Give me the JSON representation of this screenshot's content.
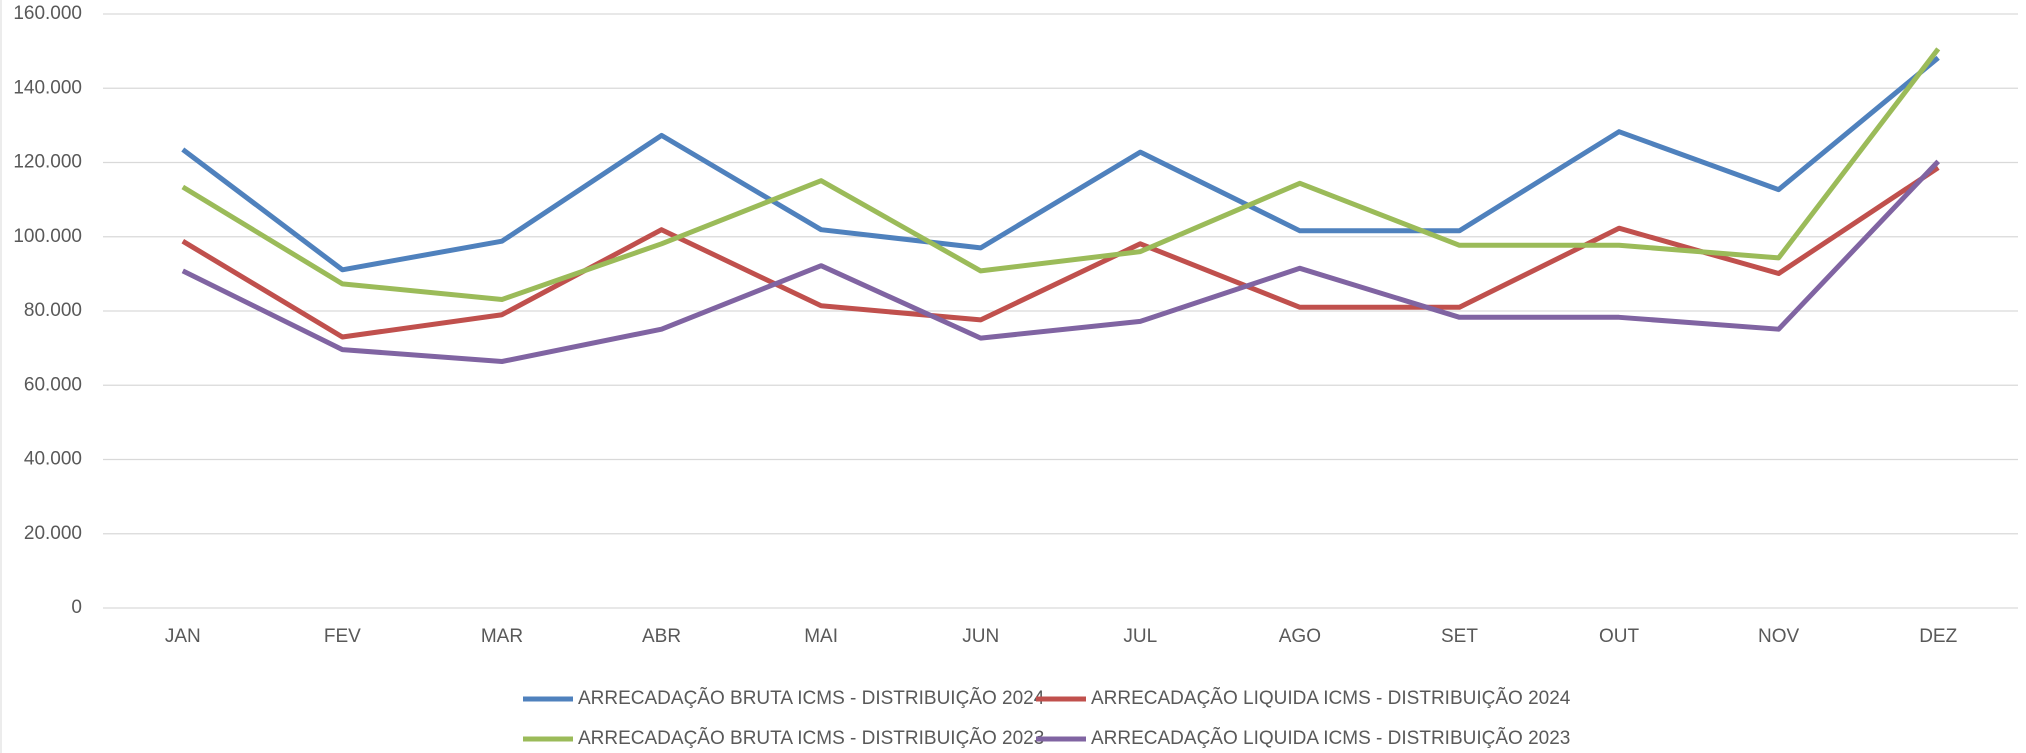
{
  "chart_data": {
    "type": "line",
    "categories": [
      "JAN",
      "FEV",
      "MAR",
      "ABR",
      "MAI",
      "JUN",
      "JUL",
      "AGO",
      "SET",
      "OUT",
      "NOV",
      "DEZ"
    ],
    "series": [
      {
        "name": "ARRECADAÇÃO BRUTA ICMS - DISTRIBUIÇÃO 2024",
        "color": "#4f81bd",
        "values": [
          123500,
          91100,
          98800,
          127300,
          101900,
          97000,
          122800,
          101600,
          101600,
          128300,
          112700,
          148200
        ]
      },
      {
        "name": "ARRECADAÇÃO LIQUIDA ICMS - DISTRIBUIÇÃO 2024",
        "color": "#c0504d",
        "values": [
          98800,
          73000,
          79000,
          101900,
          81400,
          77600,
          98100,
          81000,
          81000,
          102300,
          90100,
          118600
        ]
      },
      {
        "name": "ARRECADAÇÃO BRUTA ICMS - DISTRIBUIÇÃO 2023",
        "color": "#9bbb59",
        "values": [
          113400,
          87300,
          83100,
          98100,
          115100,
          90800,
          96000,
          114400,
          97700,
          97700,
          94300,
          150600
        ]
      },
      {
        "name": "ARRECADAÇÃO LIQUIDA ICMS - DISTRIBUIÇÃO 2023",
        "color": "#8064a2",
        "values": [
          90800,
          69600,
          66400,
          75100,
          92200,
          72700,
          77200,
          91500,
          78300,
          78300,
          75100,
          120300
        ]
      }
    ],
    "ylim": [
      0,
      160000
    ],
    "yticks": [
      0,
      {
        "value": 20000,
        "label": "20.000"
      },
      {
        "value": 40000,
        "label": "40.000"
      },
      {
        "value": 60000,
        "label": "60.000"
      },
      {
        "value": 80000,
        "label": "80.000"
      },
      {
        "value": 100000,
        "label": "100.000"
      },
      {
        "value": 120000,
        "label": "120.000"
      },
      {
        "value": 140000,
        "label": "140.000"
      },
      {
        "value": 160000,
        "label": "160.000"
      }
    ],
    "grid": true,
    "legend_position": "bottom"
  }
}
